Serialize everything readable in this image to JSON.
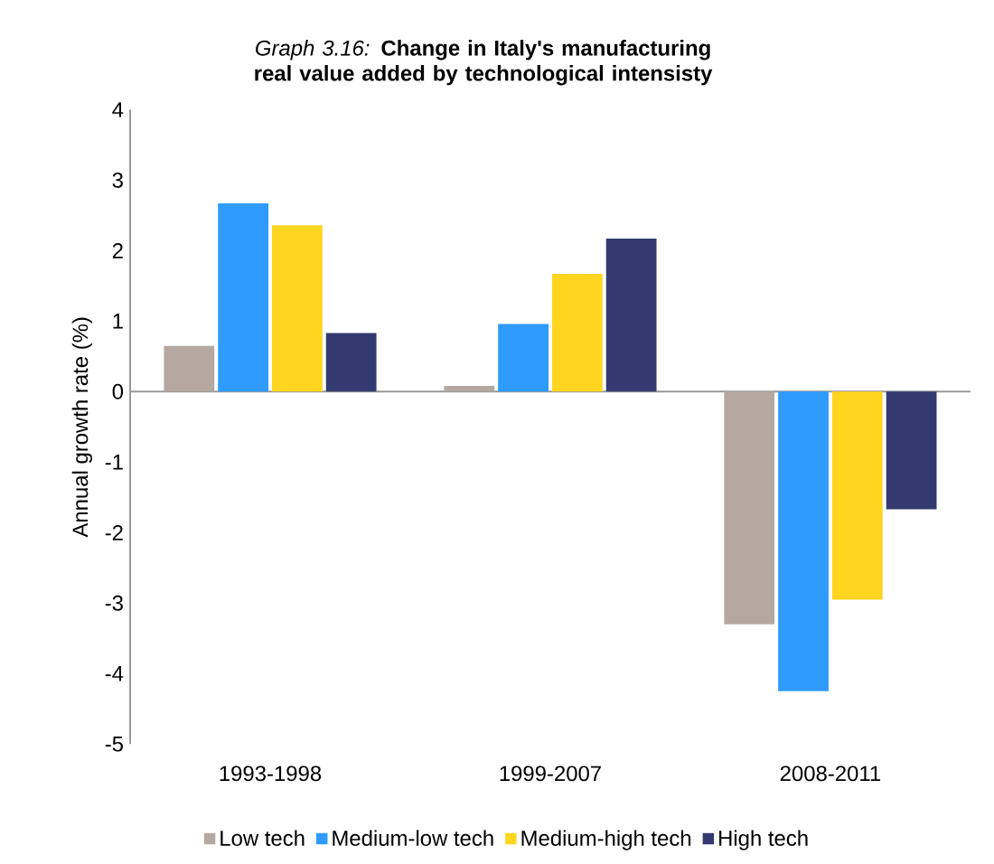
{
  "chart_data": {
    "type": "bar",
    "title": "*Graph 3.16:* **Change in Italy's manufacturing real value added by technological intensisty**",
    "ylabel": "Annual growth rate (%)",
    "categories": [
      "1993-1998",
      "1999-2007",
      "2008-2011"
    ],
    "series": [
      {
        "name": "Low tech",
        "color": "#b5a8a0",
        "values": [
          0.65,
          0.08,
          -3.3
        ]
      },
      {
        "name": "Medium-low tech",
        "color": "#2e9bfd",
        "values": [
          2.67,
          0.96,
          -4.25
        ]
      },
      {
        "name": "Medium-high tech",
        "color": "#ffd520",
        "values": [
          2.36,
          1.67,
          -2.95
        ]
      },
      {
        "name": "High tech",
        "color": "#343a70",
        "values": [
          0.83,
          2.17,
          -1.67
        ]
      }
    ],
    "ylim": [
      -5,
      4
    ],
    "yticks": [
      -5,
      -4,
      -3,
      -2,
      -1,
      0,
      1,
      2,
      3,
      4
    ],
    "legend": "bottom"
  }
}
